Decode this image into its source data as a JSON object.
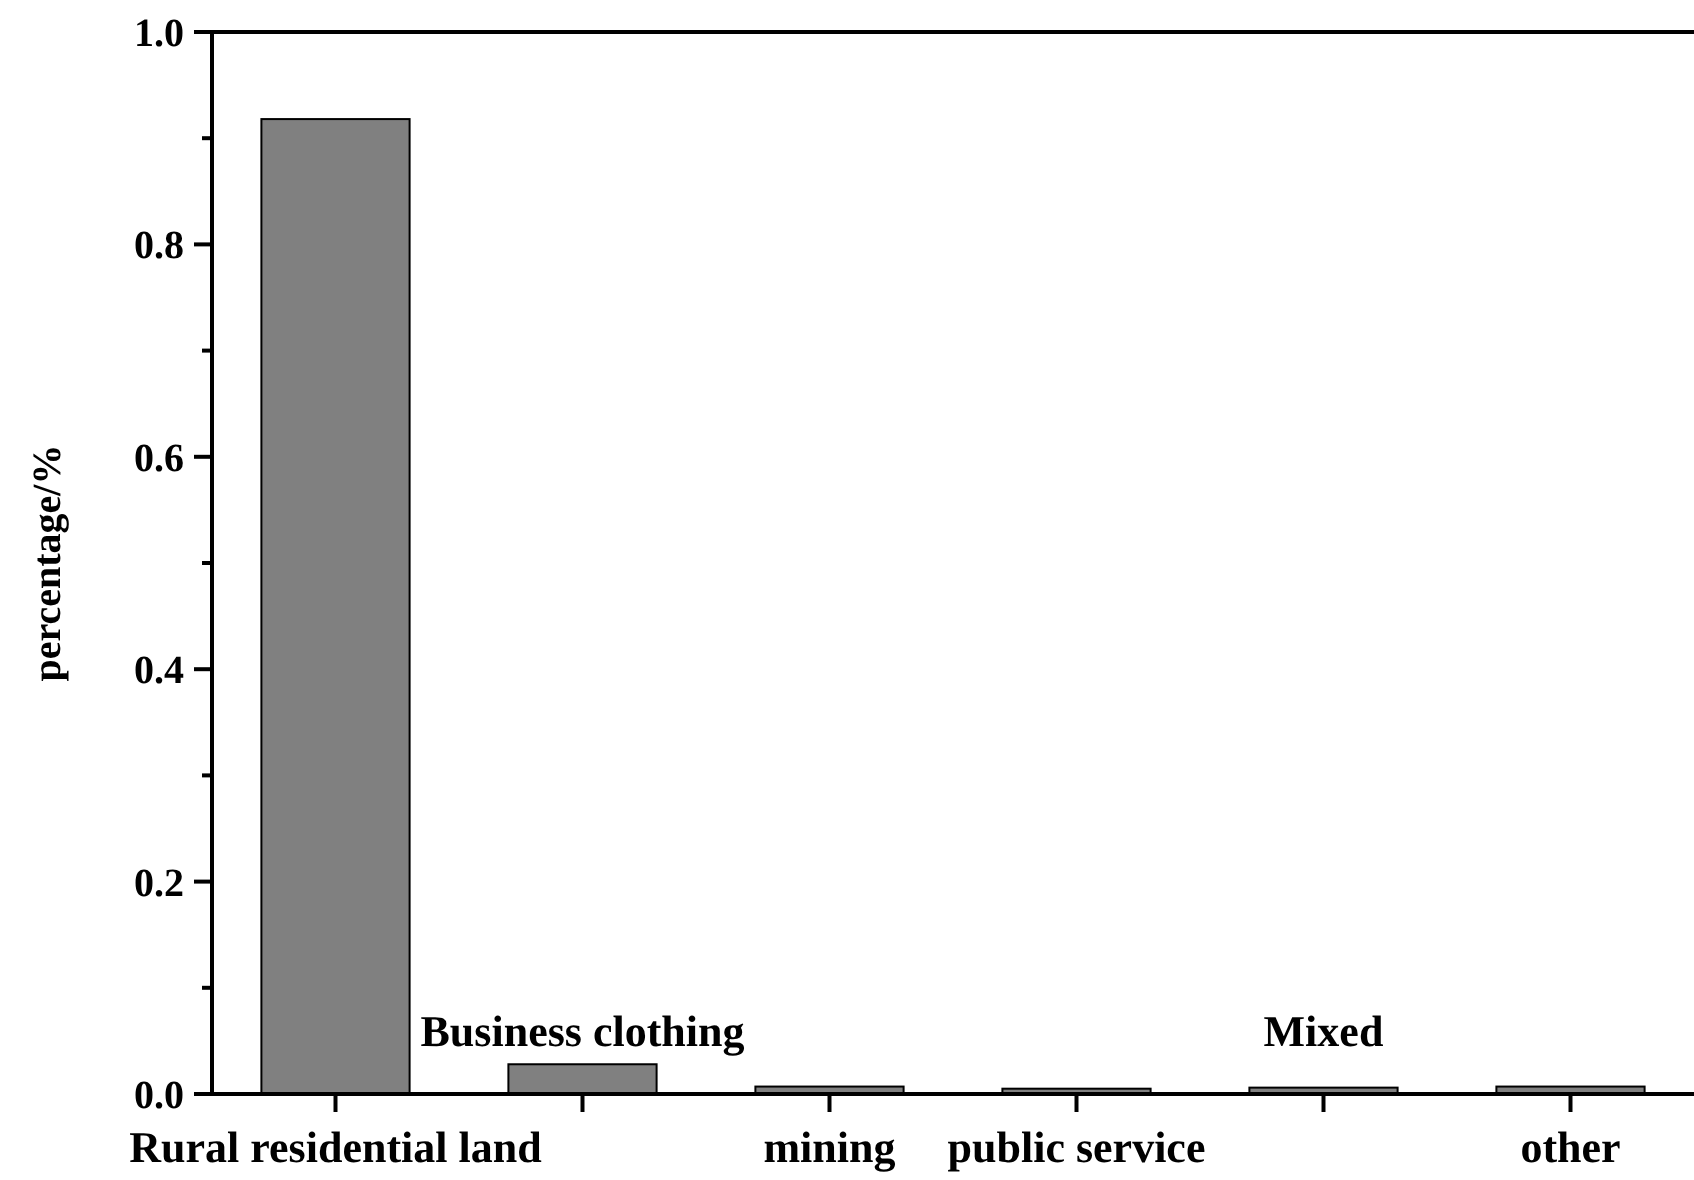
{
  "chart_data": {
    "type": "bar",
    "ylabel": "percentage/%",
    "categories": [
      "Rural residential land",
      "Business clothing",
      "mining",
      "public service",
      "Mixed",
      "other"
    ],
    "values": [
      0.918,
      0.028,
      0.007,
      0.005,
      0.006,
      0.007
    ],
    "color": "#808080",
    "ylim": [
      0,
      1.0
    ],
    "yticks": [
      {
        "value": 0,
        "label": "0.0"
      },
      {
        "value": 0.1,
        "label": null
      },
      {
        "value": 0.2,
        "label": "0.2"
      },
      {
        "value": 0.3,
        "label": null
      },
      {
        "value": 0.4,
        "label": "0.4"
      },
      {
        "value": 0.5,
        "label": null
      },
      {
        "value": 0.6,
        "label": "0.6"
      },
      {
        "value": 0.7,
        "label": null
      },
      {
        "value": 0.8,
        "label": "0.8"
      },
      {
        "value": 0.9,
        "label": null
      },
      {
        "value": 1.0,
        "label": "1.0"
      }
    ],
    "grid": false
  }
}
